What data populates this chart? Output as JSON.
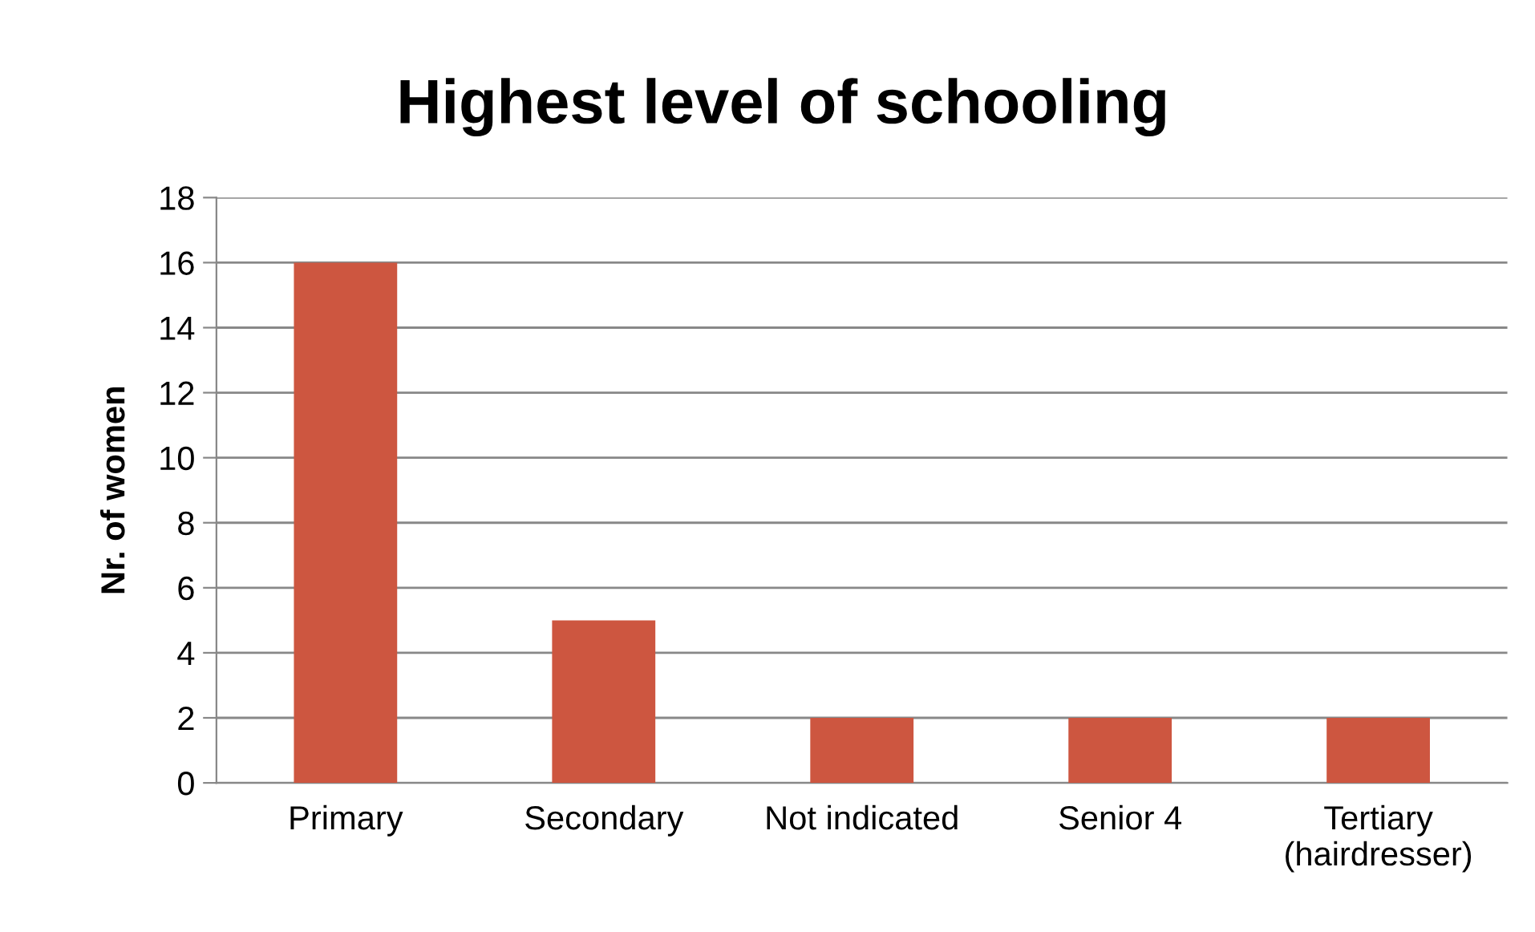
{
  "chart_data": {
    "type": "bar",
    "title": "Highest level of schooling",
    "ylabel": "Nr. of women",
    "categories": [
      "Primary",
      "Secondary",
      "Not indicated",
      "Senior 4",
      "Tertiary\n(hairdresser)"
    ],
    "values": [
      16,
      5,
      2,
      2,
      2
    ],
    "color": "#cd5640",
    "ylim": [
      0,
      18
    ],
    "yticks": [
      0,
      2,
      4,
      6,
      8,
      10,
      12,
      14,
      16,
      18
    ],
    "grid": "y",
    "legend": false
  }
}
